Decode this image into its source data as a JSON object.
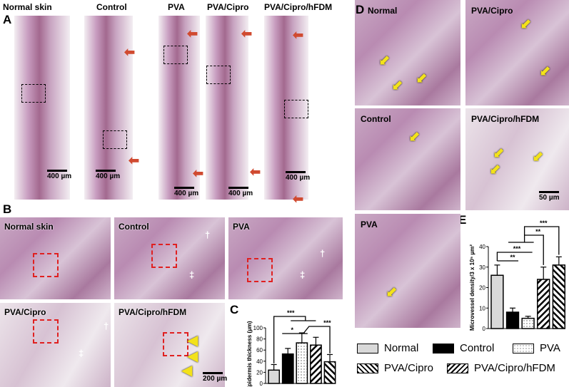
{
  "panel_a": {
    "letter": "A",
    "labels": [
      "Normal skin",
      "Control",
      "PVA",
      "PVA/Cipro",
      "PVA/Cipro/hFDM"
    ],
    "scale": "400 µm"
  },
  "panel_b": {
    "letter": "B",
    "labels": [
      "Normal skin",
      "Control",
      "PVA",
      "PVA/Cipro",
      "PVA/Cipro/hFDM"
    ],
    "scale": "200 µm",
    "dagger": "†",
    "ddagger": "‡"
  },
  "panel_d": {
    "letter": "D",
    "labels": [
      "Normal",
      "PVA/Cipro",
      "Control",
      "PVA/Cipro/hFDM",
      "PVA"
    ],
    "scale": "50 µm"
  },
  "legend": {
    "items": [
      {
        "label": "Normal",
        "pattern": "light-gray"
      },
      {
        "label": "Control",
        "pattern": "black"
      },
      {
        "label": "PVA",
        "pattern": "dotted"
      },
      {
        "label": "PVA/Cipro",
        "pattern": "backslash-hatch"
      },
      {
        "label": "PVA/Cipro/hFDM",
        "pattern": "slash-hatch"
      }
    ]
  },
  "colors": {
    "light_gray": "#d9d9d9",
    "black": "#000000",
    "arrow_red": "#d04a30",
    "arrow_yellow": "#f3e21a",
    "box_red": "#e02020"
  },
  "chart_data": [
    {
      "panel": "C",
      "type": "bar",
      "ylabel": "Epidermis thickness (µm)",
      "ylim": [
        0,
        100
      ],
      "yticks": [
        0,
        20,
        40,
        60,
        80,
        100
      ],
      "categories": [
        "Normal",
        "Control",
        "PVA",
        "PVA/Cipro",
        "PVA/Cipro/hFDM"
      ],
      "values": [
        24,
        53,
        73,
        69,
        39
      ],
      "errors": [
        10,
        10,
        18,
        14,
        13
      ],
      "significance": [
        {
          "label": "***",
          "from": "Normal",
          "to": "Control/PVA/PVA-Cipro"
        },
        {
          "label": "*",
          "from": "Control",
          "to": "PVA/PVA-Cipro"
        },
        {
          "label": "***",
          "from": "PVA/PVA-Cipro",
          "to": "PVA/Cipro/hFDM"
        }
      ]
    },
    {
      "panel": "E",
      "type": "bar",
      "ylabel": "Microvessel density/3 x 10⁵ µm²",
      "ylim": [
        0,
        40
      ],
      "yticks": [
        0,
        10,
        20,
        30,
        40
      ],
      "categories": [
        "Normal",
        "Control",
        "PVA",
        "PVA/Cipro",
        "PVA/Cipro/hFDM"
      ],
      "values": [
        26,
        8,
        5,
        24,
        31
      ],
      "errors": [
        5,
        2,
        1,
        6,
        4
      ],
      "significance": [
        {
          "label": "**",
          "from": "Normal",
          "to": "Control"
        },
        {
          "label": "***",
          "from": "Normal",
          "to": "PVA"
        },
        {
          "label": "**",
          "from": "Control/PVA",
          "to": "PVA/Cipro"
        },
        {
          "label": "***",
          "from": "Control/PVA",
          "to": "PVA/Cipro/hFDM"
        }
      ]
    }
  ]
}
